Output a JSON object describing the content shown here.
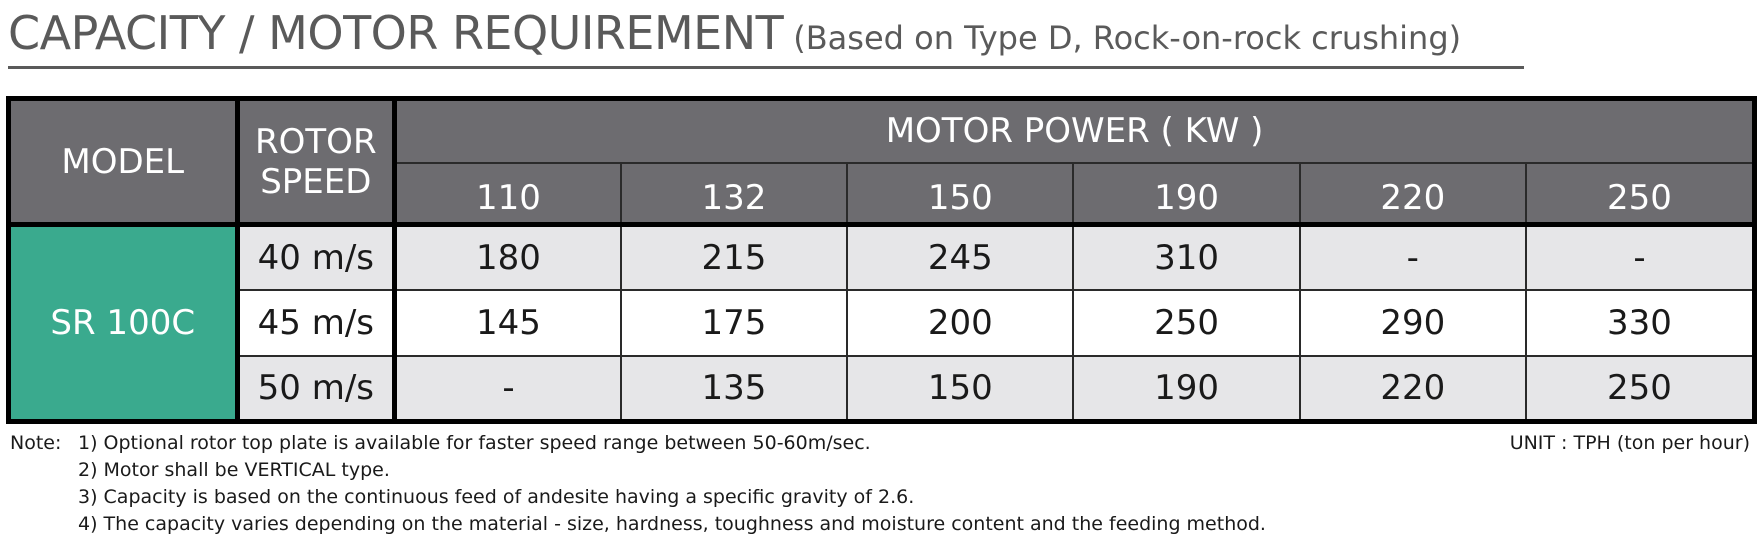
{
  "title": {
    "main": "CAPACITY / MOTOR REQUIREMENT",
    "sub": "(Based on Type D, Rock-on-rock crushing)"
  },
  "table": {
    "headers": {
      "model": "MODEL",
      "rotor_speed_line1": "ROTOR",
      "rotor_speed_line2": "SPEED",
      "motor_power": "MOTOR POWER ( KW )",
      "power_columns": [
        "110",
        "132",
        "150",
        "190",
        "220",
        "250"
      ]
    },
    "model": "SR 100C",
    "rows": [
      {
        "speed": "40 m/s",
        "values": [
          "180",
          "215",
          "245",
          "310",
          "-",
          "-"
        ]
      },
      {
        "speed": "45 m/s",
        "values": [
          "145",
          "175",
          "200",
          "250",
          "290",
          "330"
        ]
      },
      {
        "speed": "50 m/s",
        "values": [
          "-",
          "135",
          "150",
          "190",
          "220",
          "250"
        ]
      }
    ],
    "colors": {
      "header_bg": "#6d6c70",
      "model_bg": "#3aaa8e",
      "row_gray": "#e6e6e8",
      "row_white": "#ffffff"
    }
  },
  "notes": {
    "label": "Note:",
    "items": [
      "1) Optional rotor top plate is available for faster speed range between 50-60m/sec.",
      "2) Motor shall be VERTICAL type.",
      "3) Capacity is based on the continuous feed of andesite having a specific gravity of 2.6.",
      "4) The capacity varies depending on the material - size, hardness, toughness and moisture content and the feeding method."
    ],
    "unit": "UNIT : TPH (ton per hour)"
  }
}
